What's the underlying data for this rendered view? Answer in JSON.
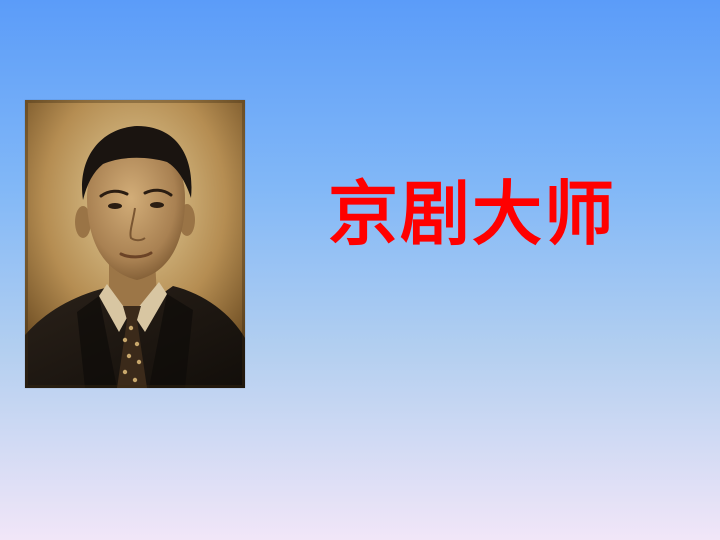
{
  "slide": {
    "title": "京剧大师",
    "title_color": "#ff0000",
    "background_colors": [
      "#5b9cf9",
      "#82b8f7",
      "#b3cff0",
      "#f1e6f8"
    ]
  },
  "portrait": {
    "tone": "sepia",
    "colors": {
      "backdrop_light": "#d9c08a",
      "backdrop_dark": "#6b4a1f",
      "suit": "#1e1812",
      "skin": "#b48e5c",
      "hair": "#1a1410",
      "tie": "#3b2a1a"
    }
  }
}
